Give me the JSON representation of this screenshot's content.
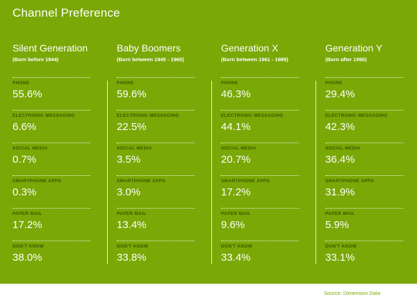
{
  "title": "Channel Preference",
  "source": "Source: Dimension Data",
  "generations": [
    {
      "name": "Silent Generation",
      "born": "(Born before 1944)",
      "rows": [
        {
          "label": "PHONE",
          "value": "55.6%"
        },
        {
          "label": "ELECTRONIC MESSAGING",
          "value": "6.6%"
        },
        {
          "label": "SOCIAL MEDIA",
          "value": "0.7%"
        },
        {
          "label": "SMARTPHONE APPS",
          "value": "0.3%"
        },
        {
          "label": "PAPER MAIL",
          "value": "17.2%"
        },
        {
          "label": "DON'T KNOW",
          "value": "38.0%"
        }
      ]
    },
    {
      "name": "Baby Boomers",
      "born": "(Born between 1945 - 1960)",
      "rows": [
        {
          "label": "PHONE",
          "value": "59.6%"
        },
        {
          "label": "ELECTRONIC MESSAGING",
          "value": "22.5%"
        },
        {
          "label": "SOCIAL MEDIA",
          "value": "3.5%"
        },
        {
          "label": "SMARTPHONE APPS",
          "value": "3.0%"
        },
        {
          "label": "PAPER MAIL",
          "value": "13.4%"
        },
        {
          "label": "DON'T KNOW",
          "value": "33.8%"
        }
      ]
    },
    {
      "name": "Generation X",
      "born": "(Born between 1961 - 1989)",
      "rows": [
        {
          "label": "PHONE",
          "value": "46.3%"
        },
        {
          "label": "ELECTRONIC MESSAGING",
          "value": "44.1%"
        },
        {
          "label": "SOCIAL MEDIA",
          "value": "20.7%"
        },
        {
          "label": "SMARTPHONE APPS",
          "value": "17.2%"
        },
        {
          "label": "PAPER MAIL",
          "value": "9.6%"
        },
        {
          "label": "DON'T KNOW",
          "value": "33.4%"
        }
      ]
    },
    {
      "name": "Generation Y",
      "born": "(Born after 1990)",
      "rows": [
        {
          "label": "PHONE",
          "value": "29.4%"
        },
        {
          "label": "ELECTRONIC MESSAGING",
          "value": "42.3%"
        },
        {
          "label": "SOCIAL MEDIA",
          "value": "36.4%"
        },
        {
          "label": "SMARTPHONE APPS",
          "value": "31.9%"
        },
        {
          "label": "PAPER MAIL",
          "value": "5.9%"
        },
        {
          "label": "DON'T KNOW",
          "value": "33.1%"
        }
      ]
    }
  ],
  "colors": {
    "background": "#7aa806",
    "label": "#3f5500",
    "text": "#ffffff"
  }
}
